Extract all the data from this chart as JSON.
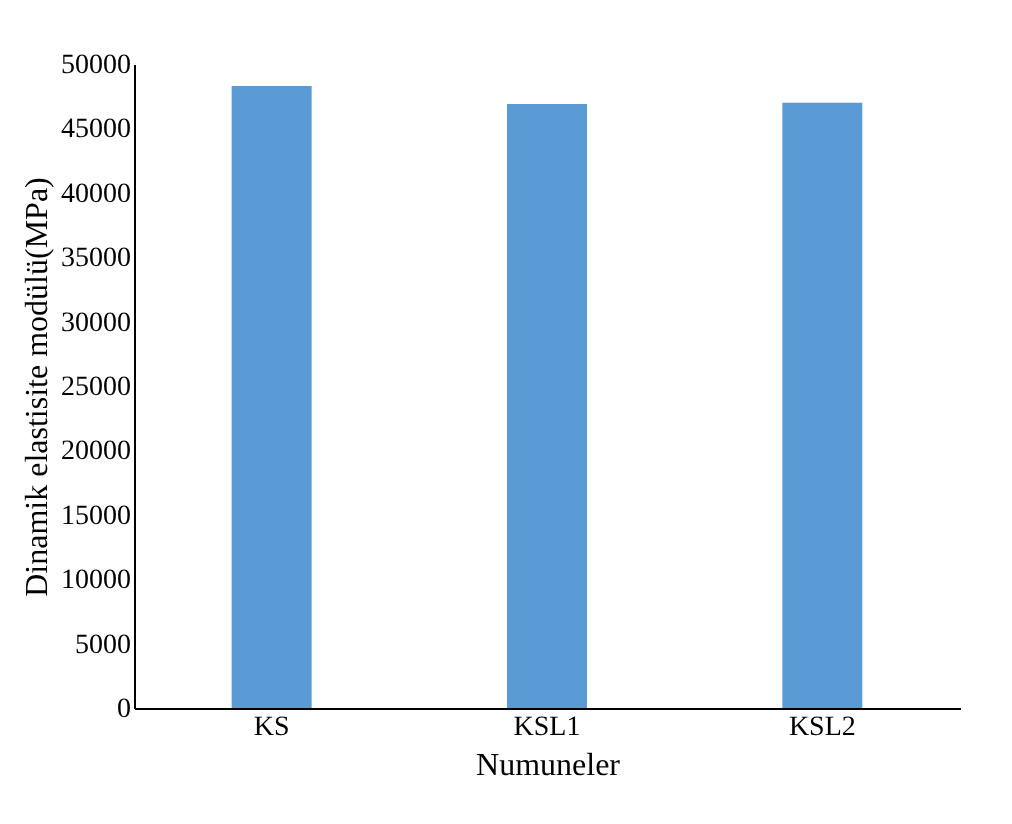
{
  "chart_data": {
    "type": "bar",
    "xlabel": "Numuneler",
    "ylabel": "Dinamik elastisite modülü(MPa)",
    "categories": [
      "KS",
      "KSL1",
      "KSL2"
    ],
    "values": [
      48300,
      46900,
      47000
    ],
    "color": "#5b9bd5",
    "ylim": [
      0,
      50000
    ],
    "yticks": [
      0,
      5000,
      10000,
      15000,
      20000,
      25000,
      30000,
      35000,
      40000,
      45000,
      50000
    ],
    "grid": false
  }
}
